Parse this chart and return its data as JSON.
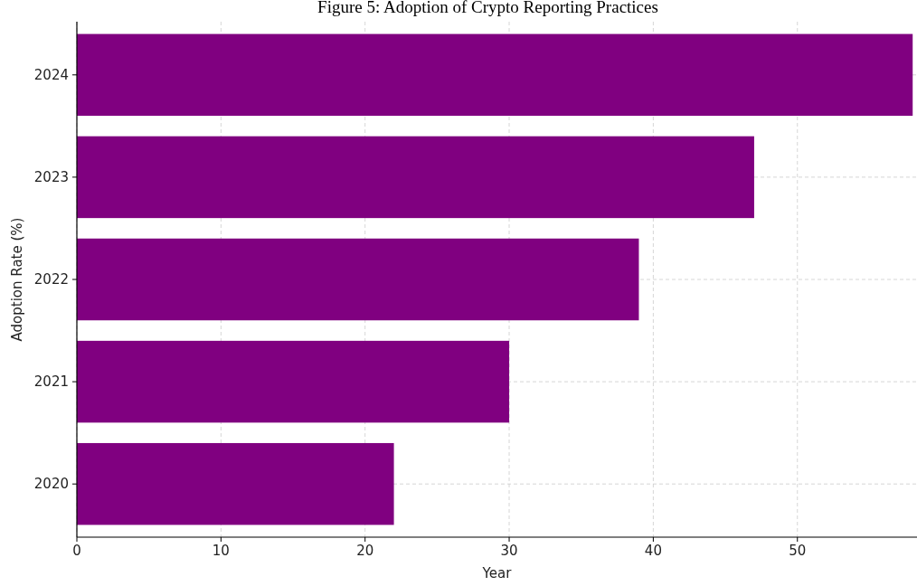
{
  "chart_data": {
    "type": "bar",
    "orientation": "horizontal",
    "title": "Figure 5: Adoption of Crypto Reporting Practices",
    "xlabel": "Year",
    "ylabel": "Adoption Rate (%)",
    "categories": [
      "2024",
      "2023",
      "2022",
      "2021",
      "2020"
    ],
    "values": [
      58,
      47,
      39,
      30,
      22
    ],
    "color": "#800080",
    "xlim": [
      0,
      58.3
    ],
    "xticks": [
      0,
      10,
      20,
      30,
      40,
      50
    ],
    "grid": true
  }
}
